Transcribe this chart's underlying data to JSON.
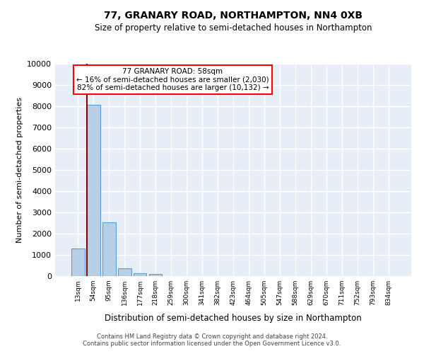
{
  "title": "77, GRANARY ROAD, NORTHAMPTON, NN4 0XB",
  "subtitle": "Size of property relative to semi-detached houses in Northampton",
  "xlabel": "Distribution of semi-detached houses by size in Northampton",
  "ylabel": "Number of semi-detached properties",
  "bar_labels": [
    "13sqm",
    "54sqm",
    "95sqm",
    "136sqm",
    "177sqm",
    "218sqm",
    "259sqm",
    "300sqm",
    "341sqm",
    "382sqm",
    "423sqm",
    "464sqm",
    "505sqm",
    "547sqm",
    "588sqm",
    "629sqm",
    "670sqm",
    "711sqm",
    "752sqm",
    "793sqm",
    "834sqm"
  ],
  "bar_values": [
    1300,
    8050,
    2550,
    380,
    130,
    90,
    0,
    0,
    0,
    0,
    0,
    0,
    0,
    0,
    0,
    0,
    0,
    0,
    0,
    0,
    0
  ],
  "bar_color": "#b8cfe8",
  "bar_edge_color": "#5a9fd4",
  "annotation_box_text": "77 GRANARY ROAD: 58sqm\n← 16% of semi-detached houses are smaller (2,030)\n82% of semi-detached houses are larger (10,132) →",
  "annotation_box_facecolor": "white",
  "annotation_box_edgecolor": "red",
  "vline_color": "#8b0000",
  "ylim": [
    0,
    10000
  ],
  "yticks": [
    0,
    1000,
    2000,
    3000,
    4000,
    5000,
    6000,
    7000,
    8000,
    9000,
    10000
  ],
  "background_color": "#e8eef8",
  "grid_color": "#ffffff",
  "title_fontsize": 10,
  "subtitle_fontsize": 8.5,
  "xlabel_fontsize": 8.5,
  "ylabel_fontsize": 8,
  "footer_line1": "Contains HM Land Registry data © Crown copyright and database right 2024.",
  "footer_line2": "Contains public sector information licensed under the Open Government Licence v3.0."
}
